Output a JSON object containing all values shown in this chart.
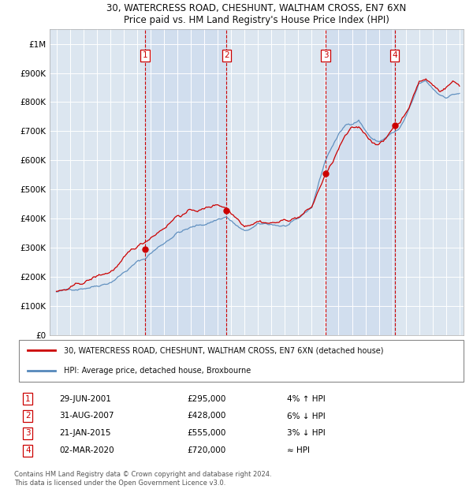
{
  "title_line1": "30, WATERCRESS ROAD, CHESHUNT, WALTHAM CROSS, EN7 6XN",
  "title_line2": "Price paid vs. HM Land Registry's House Price Index (HPI)",
  "background_color": "#ffffff",
  "plot_bg_color": "#dce6f0",
  "grid_color": "#ffffff",
  "sale_years": [
    2001.58,
    2007.67,
    2015.05,
    2020.17
  ],
  "sale_prices": [
    295000,
    428000,
    555000,
    720000
  ],
  "sale_labels": [
    "1",
    "2",
    "3",
    "4"
  ],
  "sale_notes": [
    "4% ↑ HPI",
    "6% ↓ HPI",
    "3% ↓ HPI",
    "≈ HPI"
  ],
  "sale_note_dates": [
    "29-JUN-2001",
    "31-AUG-2007",
    "21-JAN-2015",
    "02-MAR-2020"
  ],
  "prices_display": [
    "£295,000",
    "£428,000",
    "£555,000",
    "£720,000"
  ],
  "legend_house_label": "30, WATERCRESS ROAD, CHESHUNT, WALTHAM CROSS, EN7 6XN (detached house)",
  "legend_hpi_label": "HPI: Average price, detached house, Broxbourne",
  "footer": "Contains HM Land Registry data © Crown copyright and database right 2024.\nThis data is licensed under the Open Government Licence v3.0.",
  "house_color": "#cc0000",
  "hpi_color": "#5588bb",
  "dashed_line_color": "#cc0000",
  "ylim_min": 0,
  "ylim_max": 1050000,
  "xlim_min": 1994.5,
  "xlim_max": 2025.3,
  "yticks": [
    0,
    100000,
    200000,
    300000,
    400000,
    500000,
    600000,
    700000,
    800000,
    900000,
    1000000
  ]
}
